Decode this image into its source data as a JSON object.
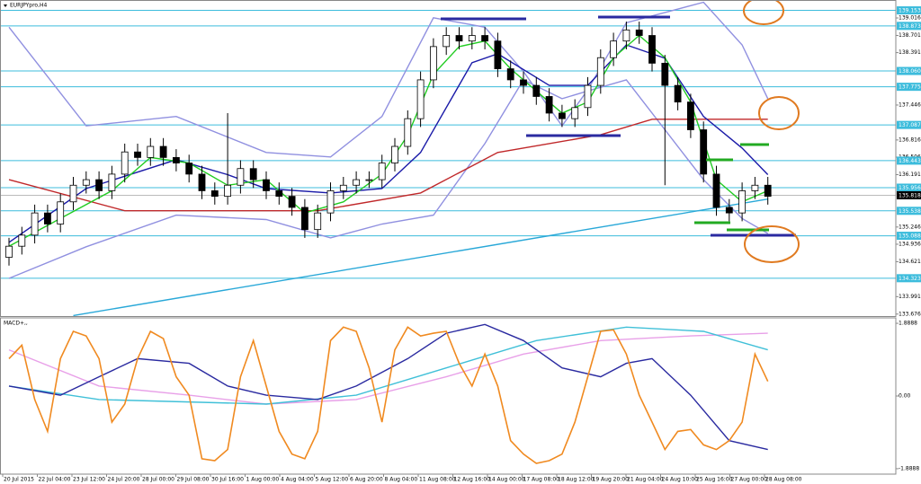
{
  "chart_data": [
    {
      "type": "candlestick",
      "title": "EURJPYpro,H4",
      "open": [
        134.7,
        134.9,
        135.1,
        135.5,
        135.3,
        135.7,
        136.0,
        136.1,
        135.9,
        136.2,
        136.6,
        136.5,
        136.7,
        136.5,
        136.4,
        136.2,
        135.9,
        135.8,
        136.0,
        136.3,
        136.1,
        135.9,
        135.8,
        135.6,
        135.2,
        135.5,
        135.9,
        136.0,
        136.1,
        136.1,
        136.4,
        136.7,
        137.2,
        137.9,
        138.5,
        138.7,
        138.6,
        138.7,
        138.6,
        138.1,
        137.9,
        137.8,
        137.6,
        137.3,
        137.2,
        137.4,
        137.8,
        138.3,
        138.6,
        138.8,
        138.7,
        138.2,
        137.8,
        137.5,
        137.0,
        136.2,
        135.6,
        135.5,
        135.9,
        136.0
      ],
      "high": [
        135.05,
        135.25,
        135.65,
        135.65,
        135.85,
        136.15,
        136.25,
        136.25,
        136.35,
        136.75,
        136.75,
        136.85,
        136.85,
        136.65,
        136.55,
        136.35,
        136.05,
        137.3,
        136.45,
        136.45,
        136.25,
        136.05,
        135.95,
        135.75,
        135.65,
        136.05,
        136.15,
        136.25,
        136.25,
        136.55,
        136.85,
        137.35,
        138.05,
        138.65,
        138.85,
        138.85,
        138.85,
        138.85,
        138.75,
        138.25,
        138.05,
        137.95,
        137.75,
        137.45,
        137.55,
        137.95,
        138.45,
        138.75,
        138.95,
        138.95,
        138.85,
        138.35,
        137.95,
        137.65,
        137.15,
        136.35,
        135.75,
        136.05,
        136.15,
        136.15
      ],
      "low": [
        134.55,
        134.75,
        134.95,
        135.15,
        135.15,
        135.55,
        135.85,
        135.75,
        135.75,
        136.05,
        136.35,
        136.35,
        136.35,
        136.25,
        136.05,
        135.75,
        135.65,
        135.65,
        135.85,
        135.95,
        135.75,
        135.65,
        135.45,
        135.05,
        135.05,
        135.35,
        135.75,
        135.85,
        135.95,
        135.95,
        136.25,
        136.55,
        137.05,
        137.75,
        138.35,
        138.45,
        138.45,
        138.45,
        137.95,
        137.75,
        137.65,
        137.45,
        137.15,
        137.05,
        137.05,
        137.25,
        137.65,
        138.15,
        138.45,
        138.55,
        138.05,
        136.0,
        137.35,
        136.85,
        136.05,
        135.45,
        135.35,
        135.35,
        135.75,
        135.65
      ],
      "close": [
        134.9,
        135.1,
        135.5,
        135.3,
        135.7,
        136.0,
        136.1,
        135.9,
        136.2,
        136.6,
        136.5,
        136.7,
        136.5,
        136.4,
        136.2,
        135.9,
        135.8,
        136.0,
        136.3,
        136.1,
        135.9,
        135.8,
        135.6,
        135.2,
        135.5,
        135.9,
        136.0,
        136.1,
        136.1,
        136.4,
        136.7,
        137.2,
        137.9,
        138.5,
        138.7,
        138.6,
        138.7,
        138.6,
        138.1,
        137.9,
        137.8,
        137.6,
        137.3,
        137.2,
        137.4,
        137.8,
        138.3,
        138.6,
        138.8,
        138.7,
        138.2,
        137.8,
        137.5,
        137.0,
        136.2,
        135.6,
        135.5,
        135.9,
        136.0,
        135.8
      ],
      "ylim": [
        133.64,
        139.34
      ],
      "yticks": [
        139.016,
        138.701,
        138.391,
        137.446,
        136.816,
        136.506,
        136.191,
        135.246,
        134.936,
        134.621,
        133.991,
        133.676
      ],
      "levels": [
        139.153,
        138.873,
        {
          "value": 138.06,
          "label": "138.060"
        },
        137.775,
        137.087,
        136.443,
        135.956,
        135.538,
        135.088,
        134.323
      ],
      "level_color": "#3cbcdc",
      "last_price": 135.818,
      "series": [
        {
          "color": "#9090e0",
          "x": [
            0,
            6,
            13,
            20,
            25,
            29,
            33,
            37,
            40,
            43,
            45,
            48,
            54,
            57,
            59
          ],
          "values": [
            138.85,
            137.07,
            137.24,
            136.59,
            136.51,
            137.24,
            139.02,
            138.85,
            138.05,
            137.07,
            137.72,
            138.93,
            139.3,
            138.53,
            137.56
          ]
        },
        {
          "color": "#9090e0",
          "x": [
            0,
            6,
            13,
            20,
            25,
            29,
            33,
            37,
            40,
            43,
            45,
            48,
            54,
            57,
            59
          ],
          "values": [
            134.32,
            134.89,
            135.46,
            135.38,
            135.05,
            135.3,
            135.46,
            136.75,
            137.9,
            137.56,
            137.7,
            137.9,
            136.1,
            135.4,
            135.13
          ]
        },
        {
          "color": "#c0282a",
          "x": [
            0,
            9,
            24,
            32,
            38,
            46,
            50,
            59
          ],
          "values": [
            136.1,
            135.54,
            135.54,
            135.86,
            136.59,
            136.91,
            137.19,
            137.19
          ]
        },
        {
          "color": "#29a8d8",
          "x": [
            5,
            59
          ],
          "values": [
            133.65,
            135.75
          ]
        },
        {
          "color": "#1a1aa8",
          "x": [
            0,
            6,
            13,
            17,
            20,
            25,
            29,
            32,
            36,
            38,
            42,
            45,
            48,
            51,
            54,
            57,
            59
          ],
          "values": [
            134.97,
            135.94,
            136.46,
            136.19,
            135.94,
            135.86,
            135.94,
            136.59,
            138.21,
            138.37,
            137.8,
            137.8,
            138.53,
            138.29,
            137.24,
            136.67,
            136.19
          ]
        },
        {
          "color": "#22cc22",
          "x": [
            0,
            4,
            8,
            11,
            14,
            17,
            20,
            23,
            26,
            29,
            31,
            33,
            35,
            37,
            39,
            41,
            43,
            45,
            47,
            49,
            51,
            53,
            55,
            57,
            59
          ],
          "values": [
            134.9,
            135.4,
            135.9,
            136.5,
            136.4,
            136.0,
            136.1,
            135.5,
            135.7,
            136.2,
            136.9,
            138.0,
            138.5,
            138.6,
            138.1,
            137.7,
            137.3,
            137.5,
            138.3,
            138.7,
            138.3,
            137.5,
            136.1,
            135.7,
            135.9
          ]
        }
      ]
    },
    {
      "type": "line",
      "title": "MACD+,,",
      "ylim": [
        -2.03,
        2.03
      ],
      "yticks": [
        1.8888,
        {
          "value": 0,
          "label": "0.00"
        },
        -1.8888
      ],
      "series": [
        {
          "color": "#e8a0e8",
          "x": [
            0,
            7,
            14,
            20,
            27,
            34,
            40,
            46,
            53,
            59
          ],
          "values": [
            1.2,
            0.26,
            0.02,
            -0.21,
            -0.09,
            0.5,
            1.09,
            1.44,
            1.56,
            1.63
          ]
        },
        {
          "color": "#40c0d8",
          "x": [
            0,
            7,
            20,
            27,
            34,
            41,
            48,
            54,
            59
          ],
          "values": [
            0.26,
            -0.09,
            -0.21,
            0.02,
            0.73,
            1.44,
            1.79,
            1.68,
            1.2
          ]
        },
        {
          "color": "#2a2aa0",
          "x": [
            0,
            4,
            7,
            10,
            14,
            17,
            20,
            24,
            27,
            31,
            34,
            37,
            40,
            43,
            46,
            48,
            50,
            53,
            56,
            59
          ],
          "values": [
            0.26,
            0.02,
            0.5,
            0.97,
            0.85,
            0.26,
            0.02,
            -0.09,
            0.26,
            0.97,
            1.63,
            1.86,
            1.44,
            0.73,
            0.5,
            0.85,
            0.97,
            0.02,
            -1.16,
            -1.39
          ]
        },
        {
          "color": "#f08a20",
          "values": [
            0.97,
            1.32,
            -0.09,
            -0.92,
            0.97,
            1.68,
            1.56,
            0.97,
            -0.68,
            -0.21,
            0.97,
            1.68,
            1.49,
            0.5,
            0.02,
            -1.63,
            -1.68,
            -1.39,
            0.5,
            1.44,
            0.26,
            -0.92,
            -1.51,
            -1.63,
            -0.92,
            1.44,
            1.79,
            1.68,
            0.73,
            -0.68,
            1.2,
            1.79,
            1.56,
            1.63,
            1.68,
            0.85,
            0.26,
            1.09,
            0.26,
            -1.16,
            -1.51,
            -1.75,
            -1.68,
            -1.51,
            -0.68,
            0.5,
            1.68,
            1.72,
            1.09,
            0.02,
            -0.68,
            -1.39,
            -0.92,
            -0.87,
            -1.27,
            -1.39,
            -1.16,
            -0.68,
            1.09,
            0.38
          ]
        }
      ],
      "x_labels": [
        "20 Jul 2015",
        "22 Jul 04:00",
        "23 Jul 12:00",
        "24 Jul 20:00",
        "28 Jul 00:00",
        "29 Jul 08:00",
        "30 Jul 16:00",
        "1 Aug 00:00",
        "4 Aug 04:00",
        "5 Aug 12:00",
        "6 Aug 20:00",
        "8 Aug 04:00",
        "11 Aug 08:00",
        "12 Aug 16:00",
        "14 Aug 00:00",
        "17 Aug 08:00",
        "18 Aug 12:00",
        "19 Aug 20:00",
        "21 Aug 04:00",
        "24 Aug 10:00",
        "25 Aug 16:00",
        "27 Aug 00:00",
        "28 Aug 08:00"
      ]
    }
  ]
}
